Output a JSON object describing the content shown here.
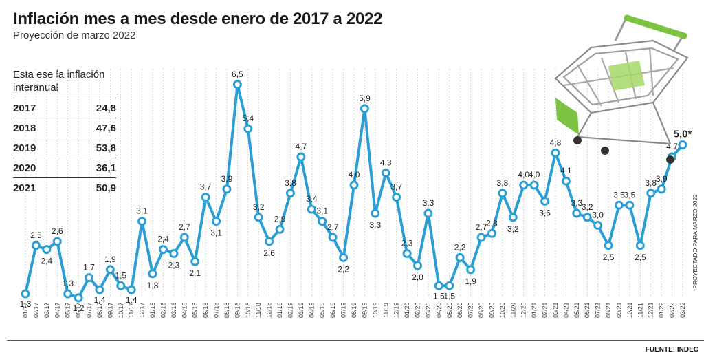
{
  "title": "Inflación mes a mes desde enero de 2017 a 2022",
  "subtitle": "Proyección de marzo 2022",
  "annual_table": {
    "heading": "Esta ese la inflación interanual",
    "rows": [
      {
        "year": "2017",
        "value": "24,8"
      },
      {
        "year": "2018",
        "value": "47,6"
      },
      {
        "year": "2019",
        "value": "53,8"
      },
      {
        "year": "2020",
        "value": "36,1"
      },
      {
        "year": "2021",
        "value": "50,9"
      }
    ]
  },
  "footnote": "*PROYECTADO PARA MARZO 2022",
  "source": "FUENTE: INDEC",
  "colors": {
    "line": "#2b9fd3",
    "marker_fill": "#ffffff",
    "grid": "#c8c8c8",
    "cart_green": "#7ec242"
  },
  "icons": [
    "shopping-cart-icon"
  ],
  "chart_data": {
    "type": "line",
    "grid": true,
    "ylim": [
      1,
      7
    ],
    "x": [
      "01/17",
      "02/17",
      "03/17",
      "04/17",
      "05/17",
      "06/17",
      "07/17",
      "08/17",
      "09/17",
      "10/17",
      "11/17",
      "12/17",
      "01/18",
      "02/18",
      "03/18",
      "04/18",
      "05/18",
      "06/18",
      "07/18",
      "08/18",
      "09/18",
      "10/18",
      "11/18",
      "12/18",
      "01/19",
      "02/19",
      "03/19",
      "04/19",
      "05/19",
      "06/19",
      "07/19",
      "08/19",
      "09/19",
      "10/19",
      "11/19",
      "12/19",
      "01/20",
      "02/20",
      "03/20",
      "04/20",
      "05/20",
      "06/20",
      "07/20",
      "08/20",
      "09/20",
      "10/20",
      "11/20",
      "12/20",
      "01/21",
      "02/21",
      "03/21",
      "04/21",
      "05/21",
      "06/21",
      "07/21",
      "08/21",
      "09/21",
      "10/21",
      "11/21",
      "12/21",
      "01/22",
      "02/22",
      "03/22"
    ],
    "values": [
      1.3,
      2.5,
      2.4,
      2.6,
      1.3,
      1.2,
      1.7,
      1.4,
      1.9,
      1.5,
      1.4,
      3.1,
      1.8,
      2.4,
      2.3,
      2.7,
      2.1,
      3.7,
      3.1,
      3.9,
      6.5,
      5.4,
      3.2,
      2.6,
      2.9,
      3.8,
      4.7,
      3.4,
      3.1,
      2.7,
      2.2,
      4.0,
      5.9,
      3.3,
      4.3,
      3.7,
      2.3,
      2.0,
      3.3,
      1.5,
      1.5,
      2.2,
      1.9,
      2.7,
      2.8,
      3.8,
      3.2,
      4.0,
      4.0,
      3.6,
      4.8,
      4.1,
      3.3,
      3.2,
      3.0,
      2.5,
      3.5,
      3.5,
      2.5,
      3.8,
      3.9,
      4.7,
      5.0
    ],
    "value_labels": [
      "1,3",
      "2,5",
      "2,4",
      "2,6",
      "1,3",
      "1,2",
      "1,7",
      "1,4",
      "1,9",
      "1,5",
      "1,4",
      "3,1",
      "1,8",
      "2,4",
      "2,3",
      "2,7",
      "2,1",
      "3,7",
      "3,1",
      "3,9",
      "6,5",
      "5,4",
      "3,2",
      "2,6",
      "2,9",
      "3,8",
      "4,7",
      "3,4",
      "3,1",
      "2,7",
      "2,2",
      "4,0",
      "5,9",
      "3,3",
      "4,3",
      "3,7",
      "2,3",
      "2,0",
      "3,3",
      "1,5",
      "1,5",
      "2,2",
      "1,9",
      "2,7",
      "2,8",
      "3,8",
      "3,2",
      "4,0",
      "4,0",
      "3,6",
      "4,8",
      "4,1",
      "3,3",
      "3,2",
      "3,0",
      "2,5",
      "3,5",
      "3,5",
      "2,5",
      "3,8",
      "3,9",
      "4,7",
      "5,0*"
    ]
  }
}
